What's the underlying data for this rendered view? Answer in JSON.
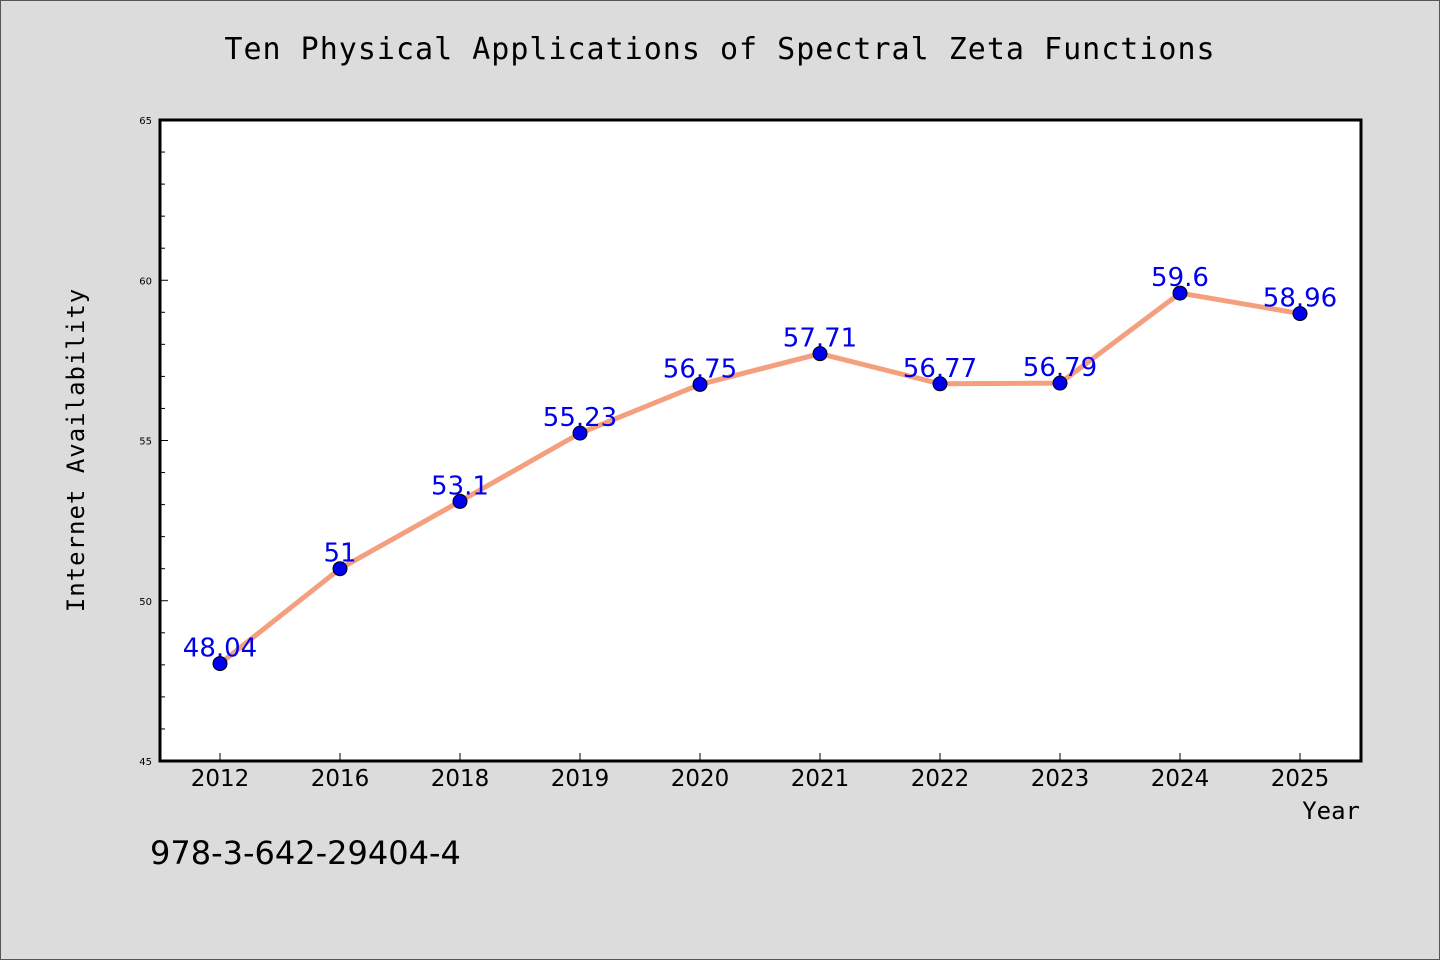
{
  "chart_data": {
    "type": "line",
    "title": "Ten Physical Applications of Spectral Zeta Functions",
    "xlabel": "Year",
    "ylabel": "Internet Availability",
    "categories": [
      "2012",
      "2016",
      "2018",
      "2019",
      "2020",
      "2021",
      "2022",
      "2023",
      "2024",
      "2025"
    ],
    "values": [
      48.04,
      51,
      53.1,
      55.23,
      56.75,
      57.71,
      56.77,
      56.79,
      59.6,
      58.96
    ],
    "data_labels": [
      "48.04",
      "51",
      "53.1",
      "55.23",
      "56.75",
      "57.71",
      "56.77",
      "56.79",
      "59.6",
      "58.96"
    ],
    "ylim": [
      45,
      65
    ],
    "yticks": [
      "45",
      "50",
      "55",
      "60",
      "65"
    ],
    "grid": false,
    "line_color": "#f4a07e",
    "marker_color": "#0000ee",
    "label_color": "#0000ee"
  },
  "footer_text": "978-3-642-29404-4"
}
